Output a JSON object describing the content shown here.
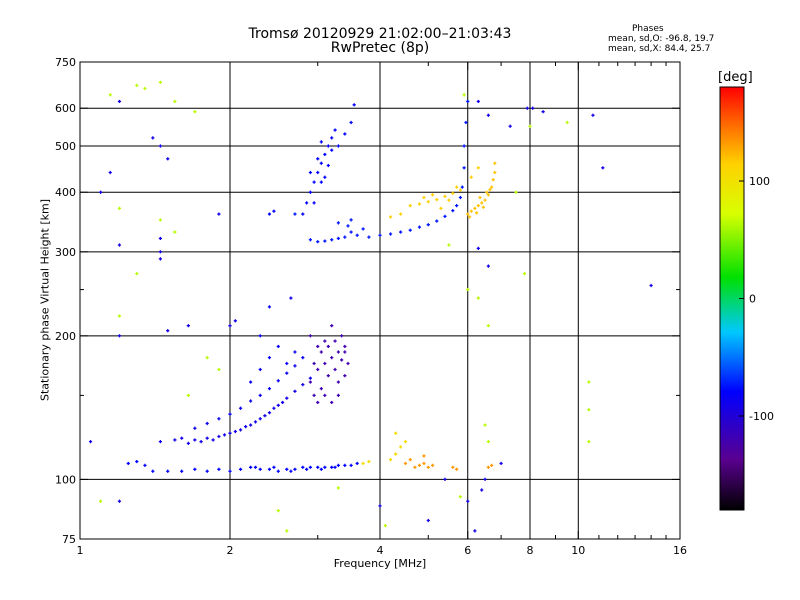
{
  "chart_data": {
    "type": "scatter",
    "title": "Tromsø 20120929 21:02:00–21:03:43",
    "subtitle": "RwPretec (8p)",
    "stats_header": "Phases",
    "stats_o": "mean, sd,O:  -96.8, 19.7",
    "stats_x": "mean, sd,X:  84.4, 25.7",
    "xlabel": "Frequency [MHz]",
    "ylabel": "Stationary phase Virtual Height [km]",
    "x_scale": "log",
    "y_scale": "log",
    "xlim": [
      1,
      16
    ],
    "ylim": [
      75,
      750
    ],
    "x_ticks": [
      1,
      2,
      4,
      6,
      8,
      10,
      16
    ],
    "x_tick_labels": [
      "1",
      "2",
      "4",
      "6",
      "8",
      "10",
      "16"
    ],
    "x_minor_ticks": [
      3,
      5,
      7,
      9,
      11,
      12,
      13,
      14,
      15
    ],
    "y_ticks": [
      75,
      100,
      200,
      300,
      400,
      500,
      600,
      750
    ],
    "y_tick_labels": [
      "75",
      "100",
      "200",
      "300",
      "400",
      "500",
      "600",
      "750"
    ],
    "y_minor_ticks": [
      150,
      250
    ],
    "grid_x": [
      2,
      4,
      6,
      8,
      10
    ],
    "grid_y": [
      100,
      200,
      300,
      400,
      500,
      600
    ],
    "colorbar": {
      "unit": "[deg]",
      "range": [
        -180,
        180
      ],
      "ticks": [
        100,
        0,
        -100
      ],
      "tick_labels": [
        "100",
        "0",
        "-100"
      ]
    },
    "series": [
      {
        "values": [
          [
            1.4,
            104
          ],
          [
            1.5,
            104
          ],
          [
            1.6,
            104
          ],
          [
            1.7,
            105
          ],
          [
            1.8,
            104
          ],
          [
            1.9,
            105
          ],
          [
            2.0,
            104
          ],
          [
            2.1,
            105
          ],
          [
            2.2,
            106
          ],
          [
            2.3,
            105
          ],
          [
            2.4,
            105
          ],
          [
            2.5,
            104
          ],
          [
            2.6,
            105
          ],
          [
            2.7,
            105
          ],
          [
            2.8,
            106
          ],
          [
            2.9,
            106
          ],
          [
            3.0,
            106
          ],
          [
            3.1,
            106
          ],
          [
            3.2,
            106
          ],
          [
            3.3,
            107
          ],
          [
            3.4,
            107
          ],
          [
            3.5,
            107
          ],
          [
            3.6,
            108
          ],
          [
            1.25,
            108
          ],
          [
            1.3,
            109
          ],
          [
            1.35,
            107
          ],
          [
            2.25,
            106
          ],
          [
            2.45,
            106
          ],
          [
            2.65,
            104
          ],
          [
            2.85,
            105
          ],
          [
            3.05,
            105
          ],
          [
            3.25,
            106
          ]
        ],
        "phase": -100
      },
      {
        "values": [
          [
            1.55,
            121
          ],
          [
            1.6,
            122
          ],
          [
            1.7,
            121
          ],
          [
            1.8,
            122
          ],
          [
            1.9,
            123
          ],
          [
            2.0,
            125
          ],
          [
            2.1,
            127
          ],
          [
            2.2,
            130
          ],
          [
            2.3,
            134
          ],
          [
            2.4,
            138
          ],
          [
            2.5,
            143
          ],
          [
            2.6,
            148
          ],
          [
            2.7,
            153
          ],
          [
            2.8,
            158
          ],
          [
            2.9,
            163
          ],
          [
            1.65,
            119
          ],
          [
            1.75,
            120
          ],
          [
            1.85,
            121
          ],
          [
            1.95,
            124
          ],
          [
            2.05,
            126
          ],
          [
            2.15,
            129
          ],
          [
            2.25,
            132
          ],
          [
            2.35,
            136
          ],
          [
            2.45,
            141
          ],
          [
            2.55,
            145
          ]
        ],
        "phase": -110
      },
      {
        "values": [
          [
            1.7,
            128
          ],
          [
            1.8,
            131
          ],
          [
            1.9,
            134
          ],
          [
            2.0,
            137
          ],
          [
            2.1,
            141
          ],
          [
            2.2,
            146
          ],
          [
            2.3,
            150
          ],
          [
            2.4,
            155
          ],
          [
            2.5,
            161
          ],
          [
            2.6,
            167
          ],
          [
            2.7,
            173
          ],
          [
            2.8,
            180
          ],
          [
            2.2,
            160
          ],
          [
            2.3,
            170
          ],
          [
            2.4,
            180
          ],
          [
            2.5,
            190
          ],
          [
            2.3,
            200
          ],
          [
            2.4,
            230
          ],
          [
            2.6,
            175
          ],
          [
            2.7,
            185
          ]
        ],
        "phase": -105
      },
      {
        "values": [
          [
            2.9,
            160
          ],
          [
            3.0,
            170
          ],
          [
            3.1,
            175
          ],
          [
            3.2,
            180
          ],
          [
            3.3,
            185
          ],
          [
            3.4,
            190
          ],
          [
            2.95,
            150
          ],
          [
            3.05,
            155
          ],
          [
            3.15,
            165
          ],
          [
            3.25,
            170
          ],
          [
            3.35,
            200
          ],
          [
            3.1,
            195
          ],
          [
            3.2,
            210
          ],
          [
            3.0,
            190
          ],
          [
            2.9,
            200
          ],
          [
            3.3,
            160
          ],
          [
            3.4,
            165
          ],
          [
            3.45,
            175
          ],
          [
            3.1,
            150
          ],
          [
            3.2,
            145
          ],
          [
            3.0,
            145
          ],
          [
            3.3,
            150
          ],
          [
            2.95,
            175
          ],
          [
            3.05,
            185
          ],
          [
            3.15,
            190
          ],
          [
            3.25,
            195
          ],
          [
            3.35,
            178
          ],
          [
            3.4,
            185
          ]
        ],
        "phase": -135
      },
      {
        "values": [
          [
            2.9,
            318
          ],
          [
            3.0,
            315
          ],
          [
            3.1,
            316
          ],
          [
            3.2,
            318
          ],
          [
            3.3,
            320
          ],
          [
            3.4,
            322
          ],
          [
            3.6,
            325
          ],
          [
            3.8,
            322
          ],
          [
            4.0,
            325
          ],
          [
            4.2,
            327
          ],
          [
            4.4,
            330
          ],
          [
            4.6,
            333
          ],
          [
            4.8,
            338
          ],
          [
            5.0,
            342
          ],
          [
            5.2,
            348
          ],
          [
            5.4,
            356
          ],
          [
            5.6,
            366
          ],
          [
            5.7,
            375
          ],
          [
            5.8,
            390
          ],
          [
            5.85,
            410
          ],
          [
            5.9,
            450
          ],
          [
            5.9,
            500
          ],
          [
            5.95,
            560
          ],
          [
            6.0,
            620
          ],
          [
            3.5,
            330
          ],
          [
            3.7,
            335
          ],
          [
            3.3,
            345
          ],
          [
            3.5,
            350
          ],
          [
            3.45,
            340
          ],
          [
            2.7,
            360
          ]
        ],
        "phase": -95
      },
      {
        "values": [
          [
            2.8,
            360
          ],
          [
            2.85,
            380
          ],
          [
            2.9,
            400
          ],
          [
            2.95,
            420
          ],
          [
            3.0,
            440
          ],
          [
            3.05,
            460
          ],
          [
            3.1,
            480
          ],
          [
            3.15,
            500
          ],
          [
            3.2,
            520
          ],
          [
            3.25,
            540
          ],
          [
            2.95,
            380
          ],
          [
            3.05,
            420
          ],
          [
            3.1,
            430
          ],
          [
            3.0,
            470
          ],
          [
            3.15,
            455
          ],
          [
            3.2,
            490
          ],
          [
            2.9,
            440
          ],
          [
            3.05,
            510
          ],
          [
            3.3,
            500
          ],
          [
            3.4,
            530
          ],
          [
            3.5,
            560
          ],
          [
            3.55,
            610
          ],
          [
            2.4,
            360
          ],
          [
            2.45,
            365
          ]
        ],
        "phase": -100
      },
      {
        "values": [
          [
            6.0,
            360
          ],
          [
            6.1,
            365
          ],
          [
            6.2,
            370
          ],
          [
            6.3,
            375
          ],
          [
            6.4,
            380
          ],
          [
            6.5,
            385
          ],
          [
            6.6,
            395
          ],
          [
            6.7,
            410
          ],
          [
            6.75,
            425
          ],
          [
            6.8,
            440
          ],
          [
            6.8,
            460
          ],
          [
            6.35,
            390
          ],
          [
            6.55,
            400
          ],
          [
            6.05,
            355
          ],
          [
            6.25,
            362
          ],
          [
            6.45,
            372
          ],
          [
            6.65,
            405
          ]
        ],
        "phase": 115
      },
      {
        "values": [
          [
            4.8,
            378
          ],
          [
            5.0,
            382
          ],
          [
            5.2,
            386
          ],
          [
            5.4,
            392
          ],
          [
            5.6,
            398
          ],
          [
            5.8,
            404
          ],
          [
            4.6,
            375
          ],
          [
            5.1,
            395
          ],
          [
            5.5,
            385
          ],
          [
            5.3,
            370
          ],
          [
            4.9,
            390
          ],
          [
            5.7,
            410
          ],
          [
            6.1,
            430
          ],
          [
            6.3,
            450
          ],
          [
            4.4,
            360
          ],
          [
            4.2,
            355
          ]
        ],
        "phase": 110
      },
      {
        "values": [
          [
            4.5,
            108
          ],
          [
            4.6,
            110
          ],
          [
            4.7,
            106
          ],
          [
            4.8,
            107
          ],
          [
            4.9,
            108
          ],
          [
            5.0,
            106
          ],
          [
            5.1,
            107
          ],
          [
            5.6,
            106
          ],
          [
            5.7,
            105
          ],
          [
            6.6,
            106
          ],
          [
            6.7,
            107
          ],
          [
            4.9,
            112
          ]
        ],
        "phase": 130
      },
      {
        "values": [
          [
            4.2,
            110
          ],
          [
            4.3,
            113
          ],
          [
            4.4,
            117
          ],
          [
            4.5,
            120
          ],
          [
            4.3,
            125
          ],
          [
            3.7,
            108
          ],
          [
            3.8,
            109
          ]
        ],
        "phase": 100
      },
      {
        "values": [
          [
            1.2,
            620
          ],
          [
            1.4,
            520
          ],
          [
            1.45,
            500
          ],
          [
            1.45,
            320
          ],
          [
            1.45,
            300
          ],
          [
            1.45,
            290
          ],
          [
            1.2,
            310
          ],
          [
            1.1,
            400
          ],
          [
            1.15,
            440
          ],
          [
            1.5,
            470
          ],
          [
            1.9,
            360
          ],
          [
            2.0,
            210
          ],
          [
            2.05,
            215
          ],
          [
            2.65,
            240
          ],
          [
            1.65,
            210
          ],
          [
            1.5,
            205
          ],
          [
            6.3,
            620
          ],
          [
            6.6,
            580
          ],
          [
            7.3,
            550
          ],
          [
            7.9,
            600
          ],
          [
            8.1,
            600
          ],
          [
            8.5,
            590
          ],
          [
            10.7,
            580
          ],
          [
            11.2,
            450
          ],
          [
            14.0,
            255
          ],
          [
            6.3,
            305
          ],
          [
            6.6,
            280
          ],
          [
            6.4,
            95
          ],
          [
            6.5,
            100
          ],
          [
            5.4,
            100
          ],
          [
            4.0,
            88
          ],
          [
            5.0,
            82
          ],
          [
            7.0,
            108
          ],
          [
            1.2,
            90
          ],
          [
            1.05,
            120
          ],
          [
            1.2,
            200
          ],
          [
            1.45,
            120
          ],
          [
            6.0,
            90
          ],
          [
            6.2,
            78
          ]
        ],
        "phase": -110
      },
      {
        "values": [
          [
            1.15,
            640
          ],
          [
            1.55,
            620
          ],
          [
            1.7,
            590
          ],
          [
            1.3,
            670
          ],
          [
            1.45,
            680
          ],
          [
            1.35,
            660
          ],
          [
            1.2,
            370
          ],
          [
            1.45,
            350
          ],
          [
            1.55,
            330
          ],
          [
            1.3,
            270
          ],
          [
            1.2,
            220
          ],
          [
            1.65,
            150
          ],
          [
            1.8,
            180
          ],
          [
            1.9,
            170
          ],
          [
            1.1,
            90
          ],
          [
            3.3,
            96
          ],
          [
            2.5,
            86
          ],
          [
            2.6,
            78
          ],
          [
            4.1,
            80
          ],
          [
            5.8,
            92
          ],
          [
            6.6,
            210
          ],
          [
            6.3,
            240
          ],
          [
            6.5,
            130
          ],
          [
            6.6,
            120
          ],
          [
            7.5,
            400
          ],
          [
            9.5,
            560
          ],
          [
            10.5,
            160
          ],
          [
            10.5,
            140
          ],
          [
            10.5,
            120
          ],
          [
            6.0,
            250
          ],
          [
            7.8,
            270
          ],
          [
            8.0,
            550
          ],
          [
            5.9,
            640
          ],
          [
            5.5,
            310
          ]
        ],
        "phase": 60
      }
    ]
  }
}
